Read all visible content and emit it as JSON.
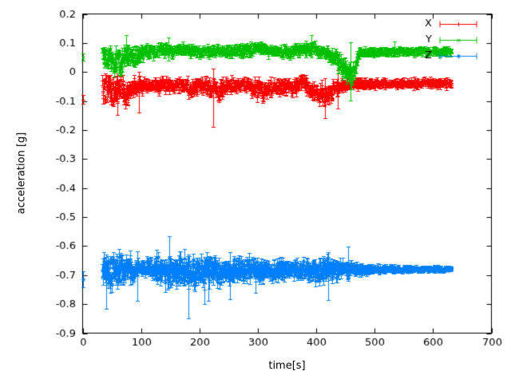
{
  "chart_data": {
    "type": "scatter",
    "title": "",
    "xlabel": "time[s]",
    "ylabel": "acceleration [g]",
    "xlim": [
      0,
      700
    ],
    "ylim": [
      -0.9,
      0.2
    ],
    "xticks": [
      "0",
      "100",
      "200",
      "300",
      "400",
      "500",
      "600",
      "700"
    ],
    "yticks": [
      "0.2",
      "0.1",
      "0",
      "-0.1",
      "-0.2",
      "-0.3",
      "-0.4",
      "-0.5",
      "-0.6",
      "-0.7",
      "-0.8",
      "-0.9"
    ],
    "grid": false,
    "background": "#ffffff",
    "axis_color": "#000000",
    "legend": {
      "position": "top-right-inside",
      "entries": [
        "X",
        "Y",
        "Z"
      ]
    },
    "series": [
      {
        "name": "X",
        "color": "#ff0000",
        "marker": "plus",
        "style": "errorbars",
        "start_points": [
          [
            1,
            -0.095,
            0.015
          ]
        ],
        "band": {
          "t_start": 34,
          "t_end": 632,
          "dt": 0.6,
          "nodes": [
            [
              34,
              -0.06,
              0.05,
              0.018
            ],
            [
              48,
              -0.052,
              0.055,
              0.018
            ],
            [
              56,
              -0.078,
              0.05,
              0.018
            ],
            [
              66,
              -0.055,
              0.042,
              0.015
            ],
            [
              76,
              -0.075,
              0.05,
              0.018
            ],
            [
              88,
              -0.05,
              0.038,
              0.014
            ],
            [
              105,
              -0.048,
              0.026,
              0.012
            ],
            [
              130,
              -0.047,
              0.024,
              0.012
            ],
            [
              152,
              -0.05,
              0.03,
              0.012
            ],
            [
              170,
              -0.047,
              0.026,
              0.012
            ],
            [
              186,
              -0.056,
              0.034,
              0.014
            ],
            [
              202,
              -0.048,
              0.024,
              0.012
            ],
            [
              218,
              -0.056,
              0.034,
              0.014
            ],
            [
              230,
              -0.068,
              0.038,
              0.014
            ],
            [
              242,
              -0.05,
              0.028,
              0.012
            ],
            [
              262,
              -0.044,
              0.024,
              0.011
            ],
            [
              282,
              -0.046,
              0.026,
              0.011
            ],
            [
              300,
              -0.058,
              0.036,
              0.014
            ],
            [
              312,
              -0.065,
              0.038,
              0.014
            ],
            [
              322,
              -0.05,
              0.028,
              0.012
            ],
            [
              338,
              -0.055,
              0.032,
              0.012
            ],
            [
              350,
              -0.045,
              0.026,
              0.011
            ],
            [
              362,
              -0.052,
              0.03,
              0.012
            ],
            [
              376,
              -0.03,
              0.024,
              0.011
            ],
            [
              388,
              -0.055,
              0.034,
              0.013
            ],
            [
              404,
              -0.075,
              0.042,
              0.016
            ],
            [
              418,
              -0.086,
              0.042,
              0.016
            ],
            [
              432,
              -0.06,
              0.03,
              0.013
            ],
            [
              448,
              -0.046,
              0.02,
              0.01
            ],
            [
              468,
              -0.04,
              0.017,
              0.009
            ],
            [
              520,
              -0.04,
              0.015,
              0.008
            ],
            [
              632,
              -0.038,
              0.015,
              0.008
            ]
          ]
        },
        "outliers": [
          [
            60,
            -0.07,
            -0.148,
            -0.004
          ],
          [
            96,
            -0.06,
            -0.14,
            0.0
          ],
          [
            224,
            -0.06,
            -0.19,
            0.013
          ],
          [
            415,
            -0.082,
            -0.158,
            -0.02
          ],
          [
            437,
            -0.055,
            -0.125,
            0.005
          ]
        ]
      },
      {
        "name": "Y",
        "color": "#00c000",
        "marker": "cross",
        "style": "errorbars",
        "start_points": [
          [
            1,
            0.051,
            0.013
          ]
        ],
        "band": {
          "t_start": 34,
          "t_end": 632,
          "dt": 0.6,
          "nodes": [
            [
              34,
              0.05,
              0.046,
              0.016
            ],
            [
              46,
              0.062,
              0.042,
              0.015
            ],
            [
              56,
              0.038,
              0.048,
              0.018
            ],
            [
              66,
              0.03,
              0.045,
              0.018
            ],
            [
              76,
              0.058,
              0.034,
              0.014
            ],
            [
              90,
              0.055,
              0.032,
              0.013
            ],
            [
              110,
              0.068,
              0.026,
              0.012
            ],
            [
              130,
              0.077,
              0.022,
              0.01
            ],
            [
              150,
              0.073,
              0.022,
              0.01
            ],
            [
              166,
              0.081,
              0.022,
              0.01
            ],
            [
              182,
              0.077,
              0.02,
              0.01
            ],
            [
              200,
              0.07,
              0.02,
              0.01
            ],
            [
              230,
              0.074,
              0.02,
              0.01
            ],
            [
              258,
              0.07,
              0.02,
              0.01
            ],
            [
              292,
              0.076,
              0.022,
              0.01
            ],
            [
              306,
              0.086,
              0.022,
              0.01
            ],
            [
              322,
              0.074,
              0.02,
              0.01
            ],
            [
              352,
              0.07,
              0.02,
              0.01
            ],
            [
              372,
              0.074,
              0.02,
              0.01
            ],
            [
              392,
              0.08,
              0.024,
              0.011
            ],
            [
              412,
              0.068,
              0.022,
              0.01
            ],
            [
              428,
              0.058,
              0.026,
              0.012
            ],
            [
              444,
              0.02,
              0.034,
              0.016
            ],
            [
              456,
              -0.015,
              0.038,
              0.018
            ],
            [
              464,
              -0.002,
              0.038,
              0.016
            ],
            [
              469,
              0.04,
              0.025,
              0.012
            ],
            [
              474,
              0.068,
              0.014,
              0.008
            ],
            [
              540,
              0.07,
              0.013,
              0.007
            ],
            [
              632,
              0.07,
              0.013,
              0.007
            ]
          ]
        },
        "outliers": [
          [
            74,
            0.08,
            0.032,
            0.126
          ],
          [
            147,
            0.08,
            0.04,
            0.12
          ],
          [
            392,
            0.09,
            0.05,
            0.128
          ],
          [
            459,
            0.0,
            -0.098,
            0.103
          ],
          [
            534,
            0.082,
            0.06,
            0.105
          ]
        ]
      },
      {
        "name": "Z",
        "color": "#0080ff",
        "marker": "asterisk",
        "style": "errorbars",
        "start_points": [
          [
            1,
            -0.715,
            0.028
          ]
        ],
        "band": {
          "t_start": 34,
          "t_end": 632,
          "dt": 0.6,
          "nodes": [
            [
              34,
              -0.69,
              0.052,
              0.028
            ],
            [
              46,
              -0.692,
              0.058,
              0.028
            ],
            [
              60,
              -0.686,
              0.054,
              0.026
            ],
            [
              80,
              -0.68,
              0.048,
              0.024
            ],
            [
              96,
              -0.674,
              0.028,
              0.015
            ],
            [
              112,
              -0.672,
              0.024,
              0.014
            ],
            [
              126,
              -0.68,
              0.046,
              0.024
            ],
            [
              146,
              -0.686,
              0.054,
              0.026
            ],
            [
              166,
              -0.68,
              0.048,
              0.024
            ],
            [
              186,
              -0.69,
              0.054,
              0.026
            ],
            [
              206,
              -0.686,
              0.048,
              0.024
            ],
            [
              226,
              -0.69,
              0.048,
              0.024
            ],
            [
              246,
              -0.684,
              0.044,
              0.021
            ],
            [
              266,
              -0.68,
              0.04,
              0.019
            ],
            [
              286,
              -0.682,
              0.037,
              0.018
            ],
            [
              306,
              -0.686,
              0.039,
              0.018
            ],
            [
              326,
              -0.68,
              0.034,
              0.016
            ],
            [
              346,
              -0.682,
              0.034,
              0.016
            ],
            [
              366,
              -0.679,
              0.031,
              0.015
            ],
            [
              386,
              -0.682,
              0.034,
              0.016
            ],
            [
              402,
              -0.686,
              0.039,
              0.018
            ],
            [
              416,
              -0.682,
              0.041,
              0.019
            ],
            [
              432,
              -0.679,
              0.034,
              0.016
            ],
            [
              452,
              -0.68,
              0.027,
              0.013
            ],
            [
              472,
              -0.68,
              0.021,
              0.01
            ],
            [
              500,
              -0.68,
              0.015,
              0.008
            ],
            [
              560,
              -0.679,
              0.011,
              0.006
            ],
            [
              632,
              -0.679,
              0.01,
              0.005
            ]
          ]
        },
        "outliers": [
          [
            40,
            -0.7,
            -0.815,
            -0.63
          ],
          [
            93,
            -0.7,
            -0.79,
            -0.618
          ],
          [
            148,
            -0.64,
            -0.725,
            -0.566
          ],
          [
            181,
            -0.72,
            -0.848,
            -0.63
          ],
          [
            208,
            -0.715,
            -0.8,
            -0.638
          ],
          [
            216,
            -0.71,
            -0.79,
            -0.648
          ],
          [
            252,
            -0.7,
            -0.782,
            -0.62
          ],
          [
            296,
            -0.7,
            -0.76,
            -0.64
          ],
          [
            420,
            -0.7,
            -0.786,
            -0.62
          ],
          [
            455,
            -0.662,
            -0.72,
            -0.602
          ]
        ]
      }
    ]
  }
}
